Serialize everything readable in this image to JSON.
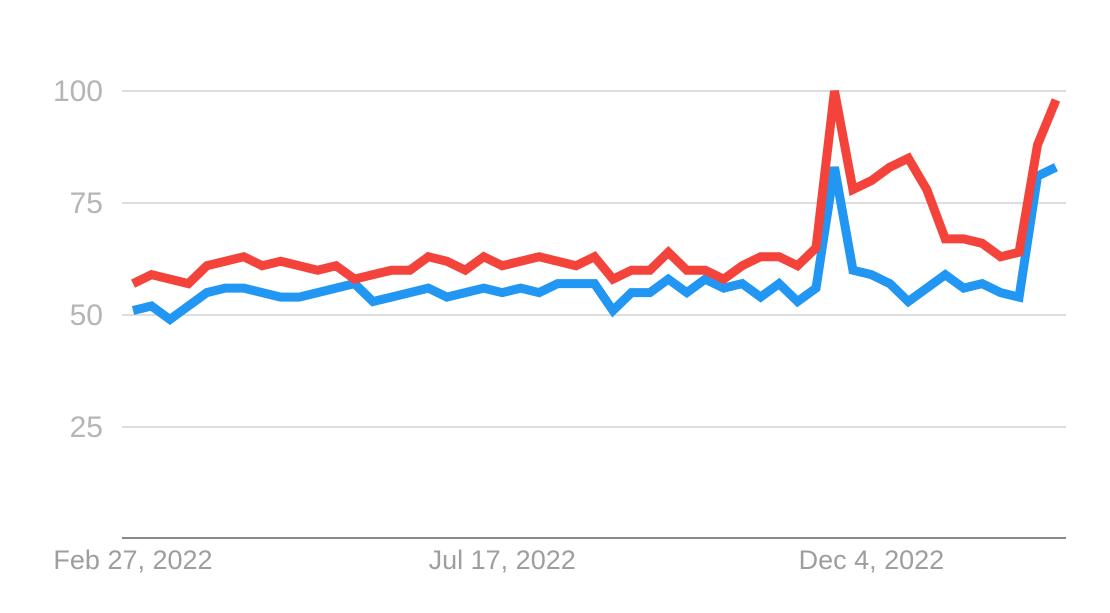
{
  "chart_data": {
    "type": "line",
    "categories": [
      "Feb 27, 2022",
      null,
      null,
      null,
      null,
      null,
      null,
      null,
      null,
      null,
      null,
      null,
      null,
      null,
      null,
      null,
      null,
      null,
      null,
      null,
      "Jul 17, 2022",
      null,
      null,
      null,
      null,
      null,
      null,
      null,
      null,
      null,
      null,
      null,
      null,
      null,
      null,
      null,
      null,
      null,
      null,
      null,
      "Dec 4, 2022",
      null,
      null,
      null,
      null,
      null,
      null,
      null,
      null,
      null,
      null
    ],
    "series": [
      {
        "color": "#2196f3",
        "values": [
          51,
          52,
          49,
          52,
          55,
          56,
          56,
          55,
          54,
          54,
          55,
          56,
          57,
          53,
          54,
          55,
          56,
          54,
          55,
          56,
          55,
          56,
          55,
          57,
          57,
          57,
          51,
          55,
          55,
          58,
          55,
          58,
          56,
          57,
          54,
          57,
          53,
          56,
          83,
          60,
          59,
          57,
          53,
          56,
          59,
          56,
          57,
          55,
          54,
          81,
          83
        ]
      },
      {
        "color": "#f4433a",
        "values": [
          57,
          59,
          58,
          57,
          61,
          62,
          63,
          61,
          62,
          61,
          60,
          61,
          58,
          59,
          60,
          60,
          63,
          62,
          60,
          63,
          61,
          62,
          63,
          62,
          61,
          63,
          58,
          60,
          60,
          64,
          60,
          60,
          58,
          61,
          63,
          63,
          61,
          65,
          100,
          78,
          80,
          83,
          85,
          78,
          67,
          67,
          66,
          63,
          64,
          88,
          98
        ]
      }
    ],
    "ylim": [
      0,
      100
    ],
    "yticks": [
      25,
      50,
      75,
      100
    ],
    "grid": true
  }
}
